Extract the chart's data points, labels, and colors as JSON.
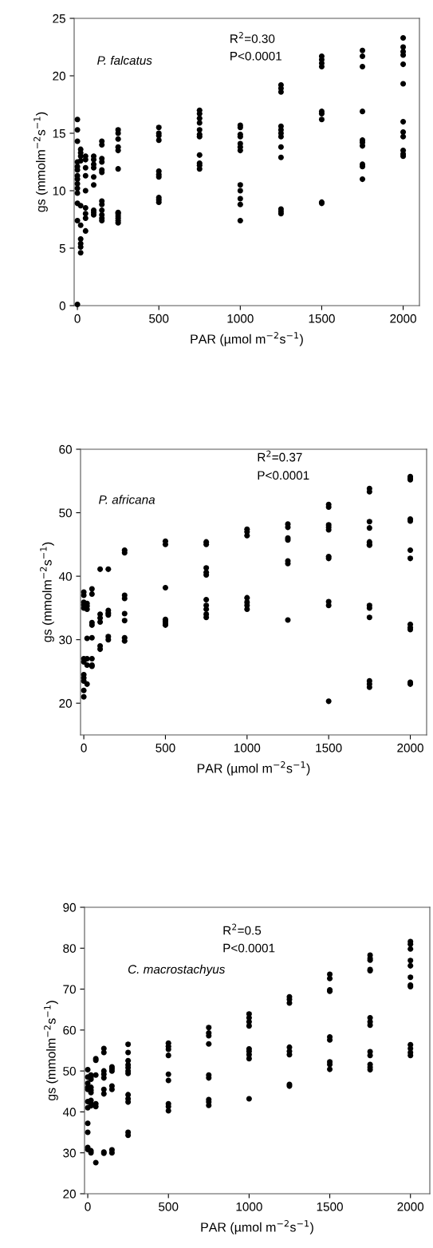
{
  "chart_data": [
    {
      "type": "scatter",
      "xlabel": "PAR (µmol m$^{−2}$s$^{−1}$)",
      "ylabel": "gs (mmolm$^{−2}$s$^{−1}$)",
      "annotations": [
        "P. falcatus",
        "R$^{2}$=0.30",
        "P<0.0001"
      ],
      "marker": "circle",
      "color": "#000000",
      "xlim": [
        -20,
        2100
      ],
      "xticks": [
        0,
        500,
        1000,
        1500,
        2000
      ],
      "ylim": [
        0,
        25
      ],
      "yticks": [
        0,
        5,
        10,
        15,
        20,
        25
      ],
      "x": [
        0,
        0,
        0,
        0,
        0,
        0,
        0,
        0,
        0,
        0,
        0,
        0,
        0,
        0,
        20,
        20,
        20,
        20,
        20,
        20,
        20,
        20,
        20,
        20,
        50,
        50,
        50,
        50,
        50,
        50,
        50,
        50,
        50,
        100,
        100,
        100,
        100,
        100,
        100,
        100,
        100,
        100,
        150,
        150,
        150,
        150,
        150,
        150,
        150,
        150,
        150,
        150,
        150,
        150,
        250,
        250,
        250,
        250,
        250,
        250,
        250,
        250,
        250,
        250,
        250,
        250,
        500,
        500,
        500,
        500,
        500,
        500,
        500,
        500,
        500,
        500,
        750,
        750,
        750,
        750,
        750,
        750,
        750,
        750,
        750,
        750,
        750,
        1000,
        1000,
        1000,
        1000,
        1000,
        1000,
        1000,
        1000,
        1000,
        1000,
        1000,
        1000,
        1250,
        1250,
        1250,
        1250,
        1250,
        1250,
        1250,
        1250,
        1250,
        1250,
        1250,
        1250,
        1500,
        1500,
        1500,
        1500,
        1500,
        1500,
        1500,
        1500,
        1500,
        1750,
        1750,
        1750,
        1750,
        1750,
        1750,
        1750,
        1750,
        1750,
        1750,
        2000,
        2000,
        2000,
        2000,
        2000,
        2000,
        2000,
        2000,
        2000,
        2000,
        2000,
        2000
      ],
      "values": [
        0.1,
        7.4,
        8.9,
        9.8,
        10.2,
        10.6,
        11.0,
        11.3,
        11.8,
        12.1,
        12.5,
        14.3,
        15.3,
        16.2,
        4.6,
        5.1,
        5.4,
        5.8,
        7.0,
        8.7,
        12.6,
        13.0,
        13.3,
        13.6,
        6.5,
        7.6,
        8.0,
        8.5,
        10.0,
        11.3,
        12.0,
        12.7,
        13.0,
        7.9,
        8.1,
        8.3,
        10.5,
        11.2,
        12.0,
        12.3,
        12.7,
        13.0,
        7.4,
        7.6,
        7.9,
        8.3,
        8.8,
        9.1,
        11.6,
        11.8,
        12.5,
        12.8,
        14.0,
        14.3,
        7.2,
        7.4,
        7.6,
        7.8,
        8.0,
        8.1,
        11.9,
        13.5,
        13.8,
        14.5,
        15.0,
        15.3,
        9.0,
        9.2,
        9.4,
        11.2,
        11.4,
        11.7,
        14.4,
        14.8,
        15.0,
        15.5,
        11.9,
        12.2,
        12.4,
        13.1,
        14.7,
        14.9,
        15.3,
        15.9,
        16.3,
        16.7,
        17.0,
        7.4,
        8.8,
        9.3,
        10.0,
        10.5,
        13.5,
        13.8,
        14.1,
        14.7,
        14.9,
        15.5,
        15.7,
        8.0,
        8.2,
        8.4,
        12.9,
        13.8,
        14.7,
        15.0,
        15.3,
        15.6,
        18.6,
        18.9,
        19.2,
        8.9,
        9.0,
        16.2,
        16.7,
        16.9,
        20.8,
        21.1,
        21.4,
        21.7,
        11.0,
        12.1,
        12.3,
        13.9,
        14.2,
        14.4,
        16.9,
        20.8,
        21.7,
        22.2,
        13.0,
        13.2,
        13.5,
        14.7,
        15.1,
        16.0,
        19.3,
        21.0,
        21.8,
        22.1,
        22.5,
        23.3
      ]
    },
    {
      "type": "scatter",
      "xlabel": "PAR (µmol m$^{−2}$s$^{−1}$)",
      "ylabel": "gs (mmolm$^{−2}$s$^{−1}$)",
      "annotations": [
        "P. africana",
        "R$^{2}$=0.37",
        "P<0.0001"
      ],
      "marker": "circle",
      "color": "#000000",
      "xlim": [
        -20,
        2100
      ],
      "xticks": [
        0,
        500,
        1000,
        1500,
        2000
      ],
      "ylim": [
        15,
        60
      ],
      "yticks": [
        20,
        30,
        40,
        50,
        60
      ],
      "x": [
        0,
        0,
        0,
        0,
        0,
        0,
        0,
        0,
        0,
        0,
        0,
        0,
        20,
        20,
        20,
        20,
        20,
        20,
        20,
        50,
        50,
        50,
        50,
        50,
        50,
        50,
        50,
        100,
        100,
        100,
        100,
        100,
        100,
        150,
        150,
        150,
        150,
        150,
        150,
        250,
        250,
        250,
        250,
        250,
        250,
        250,
        250,
        500,
        500,
        500,
        500,
        500,
        500,
        500,
        750,
        750,
        750,
        750,
        750,
        750,
        750,
        750,
        750,
        750,
        1000,
        1000,
        1000,
        1000,
        1000,
        1000,
        1000,
        1250,
        1250,
        1250,
        1250,
        1250,
        1250,
        1250,
        1500,
        1500,
        1500,
        1500,
        1500,
        1500,
        1500,
        1500,
        1500,
        1500,
        1750,
        1750,
        1750,
        1750,
        1750,
        1750,
        1750,
        1750,
        1750,
        1750,
        1750,
        1750,
        1750,
        2000,
        2000,
        2000,
        2000,
        2000,
        2000,
        2000,
        2000,
        2000,
        2000,
        2000,
        2000
      ],
      "values": [
        21.0,
        22.0,
        23.5,
        24.0,
        24.5,
        26.5,
        27.0,
        35.0,
        35.5,
        35.9,
        37.0,
        37.5,
        23.0,
        26.0,
        27.0,
        30.2,
        34.8,
        35.3,
        35.7,
        25.8,
        26.0,
        27.0,
        30.3,
        32.3,
        32.7,
        37.2,
        38.0,
        28.5,
        29.0,
        32.8,
        33.4,
        34.0,
        41.1,
        30.0,
        30.5,
        33.9,
        34.2,
        34.6,
        41.1,
        29.8,
        30.3,
        33.0,
        34.1,
        36.5,
        37.0,
        43.7,
        44.1,
        32.3,
        32.6,
        32.9,
        33.2,
        38.2,
        45.0,
        45.5,
        33.5,
        34.0,
        34.8,
        35.4,
        36.3,
        40.2,
        40.6,
        41.3,
        45.0,
        45.4,
        34.8,
        35.4,
        35.9,
        36.6,
        46.4,
        47.0,
        47.4,
        33.1,
        42.0,
        42.4,
        45.7,
        46.0,
        47.7,
        48.2,
        20.3,
        35.4,
        36.0,
        42.8,
        43.1,
        47.3,
        47.7,
        48.1,
        50.9,
        51.3,
        22.5,
        23.0,
        23.5,
        33.5,
        35.0,
        35.4,
        44.9,
        45.0,
        45.4,
        47.6,
        48.6,
        53.3,
        53.8,
        23.0,
        23.3,
        31.6,
        31.9,
        32.4,
        42.8,
        44.1,
        48.7,
        49.0,
        55.2,
        55.4,
        55.7
      ]
    },
    {
      "type": "scatter",
      "xlabel": "PAR (µmol m$^{−2}$s$^{−1}$)",
      "ylabel": "gs (mmolm$^{−2}$s$^{−1}$)",
      "annotations": [
        "C. macrostachyus",
        "R$^{2}$=0.5",
        "P<0.0001"
      ],
      "marker": "circle",
      "color": "#000000",
      "xlim": [
        -20,
        2120
      ],
      "xticks": [
        0,
        500,
        1000,
        1500,
        2000
      ],
      "ylim": [
        20,
        90
      ],
      "yticks": [
        20,
        30,
        40,
        50,
        60,
        70,
        80,
        90
      ],
      "x": [
        0,
        0,
        0,
        0,
        0,
        0,
        0,
        0,
        0,
        0,
        0,
        20,
        20,
        20,
        20,
        20,
        20,
        20,
        20,
        20,
        20,
        20,
        50,
        50,
        50,
        50,
        50,
        50,
        100,
        100,
        100,
        100,
        100,
        100,
        100,
        100,
        100,
        150,
        150,
        150,
        150,
        150,
        150,
        150,
        250,
        250,
        250,
        250,
        250,
        250,
        250,
        250,
        250,
        250,
        250,
        250,
        500,
        500,
        500,
        500,
        500,
        500,
        500,
        500,
        500,
        750,
        750,
        750,
        750,
        750,
        750,
        750,
        750,
        750,
        1000,
        1000,
        1000,
        1000,
        1000,
        1000,
        1000,
        1000,
        1000,
        1250,
        1250,
        1250,
        1250,
        1250,
        1250,
        1250,
        1250,
        1500,
        1500,
        1500,
        1500,
        1500,
        1500,
        1500,
        1500,
        1500,
        1750,
        1750,
        1750,
        1750,
        1750,
        1750,
        1750,
        1750,
        1750,
        1750,
        1750,
        1750,
        1750,
        2000,
        2000,
        2000,
        2000,
        2000,
        2000,
        2000,
        2000,
        2000,
        2000,
        2000,
        2000
      ],
      "values": [
        30.8,
        31.3,
        35.0,
        37.2,
        41.0,
        42.5,
        45.5,
        46.0,
        47.0,
        48.5,
        50.3,
        30.0,
        30.5,
        41.5,
        42.0,
        42.8,
        44.7,
        45.3,
        46.0,
        48.0,
        48.5,
        49.0,
        27.6,
        41.3,
        42.0,
        49.0,
        52.6,
        53.0,
        29.9,
        30.2,
        44.4,
        45.5,
        48.3,
        49.2,
        50.0,
        54.5,
        55.5,
        30.0,
        30.7,
        45.5,
        46.3,
        50.0,
        50.5,
        51.0,
        34.3,
        35.0,
        42.4,
        43.2,
        44.2,
        49.4,
        50.0,
        50.8,
        51.5,
        52.5,
        54.5,
        56.5,
        40.3,
        41.3,
        42.0,
        47.7,
        49.2,
        53.8,
        55.3,
        56.0,
        56.8,
        41.6,
        42.4,
        43.0,
        48.3,
        49.0,
        56.6,
        58.6,
        59.3,
        60.6,
        43.2,
        53.0,
        54.0,
        54.8,
        55.4,
        61.0,
        62.0,
        63.0,
        63.9,
        46.3,
        46.7,
        54.0,
        54.8,
        55.8,
        66.6,
        67.5,
        68.1,
        50.4,
        51.6,
        52.2,
        57.6,
        58.3,
        69.5,
        69.8,
        72.6,
        73.6,
        50.3,
        50.9,
        51.6,
        53.8,
        54.7,
        61.2,
        62.0,
        63.0,
        74.5,
        74.8,
        77.1,
        77.5,
        78.3,
        53.8,
        54.5,
        55.5,
        56.4,
        70.6,
        71.0,
        72.9,
        75.7,
        77.0,
        79.8,
        81.0,
        81.6
      ]
    }
  ]
}
